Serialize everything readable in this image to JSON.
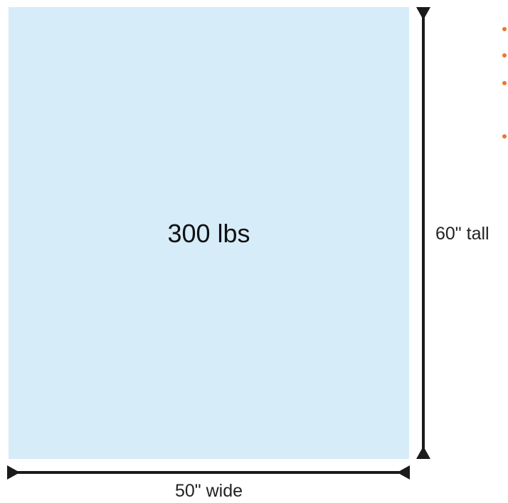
{
  "box": {
    "weight_label": "300 lbs",
    "fill_color": "#d6ecf9"
  },
  "dimensions": {
    "height_label": "60\" tall",
    "width_label": "50\" wide",
    "arrow_color": "#1a1a1a"
  },
  "bullets": {
    "color": "#e8792a",
    "count": 4
  }
}
